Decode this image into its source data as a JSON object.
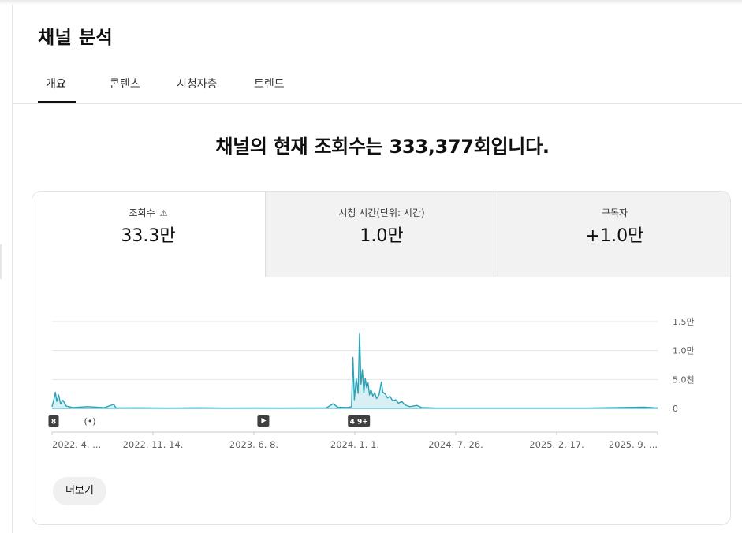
{
  "page": {
    "title": "채널 분석"
  },
  "tabs": [
    {
      "label": "개요",
      "active": true
    },
    {
      "label": "콘텐츠",
      "active": false
    },
    {
      "label": "시청자층",
      "active": false
    },
    {
      "label": "트렌드",
      "active": false
    }
  ],
  "headline": "채널의 현재 조회수는 333,377회입니다.",
  "metrics": [
    {
      "label": "조회수",
      "value": "33.3만",
      "icon": "warning-icon"
    },
    {
      "label": "시청 시간(단위: 시간)",
      "value": "1.0만"
    },
    {
      "label": "구독자",
      "value": "+1.0만"
    }
  ],
  "chart_data": {
    "type": "line",
    "x_range": [
      "2022-04-01",
      "2025-09-30"
    ],
    "x_ticks": [
      "2022. 4. ...",
      "2022. 11. 14.",
      "2023. 6. 8.",
      "2024. 1. 1.",
      "2024. 7. 26.",
      "2025. 2. 17.",
      "2025. 9. ..."
    ],
    "y_ticks": [
      "1.5만",
      "1.0만",
      "5.0천",
      "0"
    ],
    "ylim": [
      0,
      15000
    ],
    "grid": true,
    "series_color": "#2aa3b7",
    "points": [
      [
        "2022-04-01",
        300
      ],
      [
        "2022-04-05",
        1600
      ],
      [
        "2022-04-08",
        2800
      ],
      [
        "2022-04-11",
        1200
      ],
      [
        "2022-04-15",
        2300
      ],
      [
        "2022-04-19",
        800
      ],
      [
        "2022-04-24",
        1400
      ],
      [
        "2022-05-01",
        400
      ],
      [
        "2022-05-15",
        150
      ],
      [
        "2022-06-15",
        300
      ],
      [
        "2022-07-20",
        120
      ],
      [
        "2022-08-09",
        700
      ],
      [
        "2022-08-14",
        80
      ],
      [
        "2022-10-01",
        100
      ],
      [
        "2022-12-01",
        60
      ],
      [
        "2023-02-01",
        100
      ],
      [
        "2023-04-01",
        60
      ],
      [
        "2023-06-01",
        80
      ],
      [
        "2023-08-01",
        60
      ],
      [
        "2023-10-01",
        80
      ],
      [
        "2023-11-01",
        100
      ],
      [
        "2023-11-15",
        800
      ],
      [
        "2023-11-25",
        200
      ],
      [
        "2023-12-15",
        150
      ],
      [
        "2023-12-24",
        300
      ],
      [
        "2023-12-27",
        8800
      ],
      [
        "2023-12-30",
        1500
      ],
      [
        "2024-01-03",
        5200
      ],
      [
        "2024-01-07",
        2600
      ],
      [
        "2024-01-10",
        13000
      ],
      [
        "2024-01-13",
        4200
      ],
      [
        "2024-01-16",
        6700
      ],
      [
        "2024-01-19",
        2700
      ],
      [
        "2024-01-22",
        5200
      ],
      [
        "2024-01-25",
        3600
      ],
      [
        "2024-01-28",
        4400
      ],
      [
        "2024-01-31",
        2300
      ],
      [
        "2024-02-03",
        3300
      ],
      [
        "2024-02-07",
        2100
      ],
      [
        "2024-02-11",
        2700
      ],
      [
        "2024-02-15",
        1700
      ],
      [
        "2024-02-20",
        2300
      ],
      [
        "2024-02-25",
        4600
      ],
      [
        "2024-02-28",
        2800
      ],
      [
        "2024-03-04",
        2500
      ],
      [
        "2024-03-09",
        1800
      ],
      [
        "2024-03-14",
        2100
      ],
      [
        "2024-03-20",
        1300
      ],
      [
        "2024-03-26",
        1500
      ],
      [
        "2024-04-01",
        900
      ],
      [
        "2024-04-08",
        1200
      ],
      [
        "2024-04-15",
        600
      ],
      [
        "2024-04-25",
        300
      ],
      [
        "2024-05-10",
        500
      ],
      [
        "2024-05-20",
        150
      ],
      [
        "2024-06-15",
        80
      ],
      [
        "2024-09-01",
        60
      ],
      [
        "2025-01-01",
        60
      ],
      [
        "2025-05-01",
        60
      ],
      [
        "2025-09-01",
        200
      ],
      [
        "2025-09-30",
        80
      ]
    ],
    "markers": [
      {
        "x": "2022-04-01",
        "label": "8",
        "icon": ""
      },
      {
        "x": "2022-06-20",
        "label": "",
        "icon": "live-icon"
      },
      {
        "x": "2023-06-20",
        "label": "",
        "icon": "play-icon"
      },
      {
        "x": "2023-12-28",
        "label": "4 9+",
        "icon": ""
      }
    ]
  },
  "actions": {
    "more_label": "더보기"
  }
}
